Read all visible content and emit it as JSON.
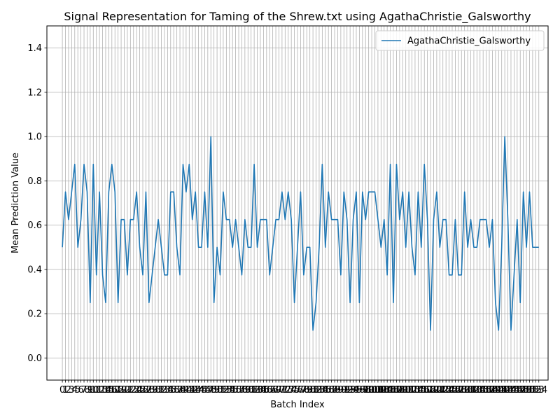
{
  "chart_data": {
    "type": "line",
    "title": "Signal Representation for Taming of the Shrew.txt using AgathaChristie_Galsworthy",
    "xlabel": "Batch Index",
    "ylabel": "Mean Prediction Value",
    "xlim": [
      -5,
      157
    ],
    "ylim": [
      -0.1,
      1.5
    ],
    "yticks": [
      0.0,
      0.2,
      0.4,
      0.6,
      0.8,
      1.0,
      1.2,
      1.4
    ],
    "ytick_labels": [
      "0.0",
      "0.2",
      "0.4",
      "0.6",
      "0.8",
      "1.0",
      "1.2",
      "1.4"
    ],
    "x_start": 0,
    "x_step": 1,
    "grid": true,
    "legend_position": "upper right",
    "colors": {
      "line": "#1f77b4",
      "grid": "#b0b0b0"
    },
    "series": [
      {
        "name": "AgathaChristie_Galsworthy",
        "values": [
          0.5,
          0.75,
          0.625,
          0.75,
          0.875,
          0.5,
          0.625,
          0.875,
          0.75,
          0.25,
          0.875,
          0.375,
          0.75,
          0.375,
          0.25,
          0.75,
          0.875,
          0.75,
          0.25,
          0.625,
          0.625,
          0.375,
          0.625,
          0.625,
          0.75,
          0.5,
          0.375,
          0.75,
          0.25,
          0.375,
          0.5,
          0.625,
          0.5,
          0.375,
          0.375,
          0.75,
          0.75,
          0.5,
          0.375,
          0.875,
          0.75,
          0.875,
          0.625,
          0.75,
          0.5,
          0.5,
          0.75,
          0.5,
          1.0,
          0.25,
          0.5,
          0.375,
          0.75,
          0.625,
          0.625,
          0.5,
          0.625,
          0.5,
          0.375,
          0.625,
          0.5,
          0.5,
          0.875,
          0.5,
          0.625,
          0.625,
          0.625,
          0.375,
          0.5,
          0.625,
          0.625,
          0.75,
          0.625,
          0.75,
          0.625,
          0.25,
          0.5,
          0.75,
          0.375,
          0.5,
          0.5,
          0.125,
          0.25,
          0.5,
          0.875,
          0.5,
          0.75,
          0.625,
          0.625,
          0.625,
          0.375,
          0.75,
          0.625,
          0.25,
          0.625,
          0.75,
          0.25,
          0.75,
          0.625,
          0.75,
          0.75,
          0.75,
          0.625,
          0.5,
          0.625,
          0.375,
          0.875,
          0.25,
          0.875,
          0.625,
          0.75,
          0.5,
          0.75,
          0.5,
          0.375,
          0.75,
          0.5,
          0.875,
          0.625,
          0.125,
          0.625,
          0.75,
          0.5,
          0.625,
          0.625,
          0.375,
          0.375,
          0.625,
          0.375,
          0.375,
          0.75,
          0.5,
          0.625,
          0.5,
          0.5,
          0.625,
          0.625,
          0.625,
          0.5,
          0.625,
          0.25,
          0.125,
          0.5,
          1.0,
          0.625,
          0.125,
          0.375,
          0.625,
          0.25,
          0.75,
          0.5,
          0.75,
          0.5,
          0.5,
          0.5
        ]
      }
    ]
  }
}
